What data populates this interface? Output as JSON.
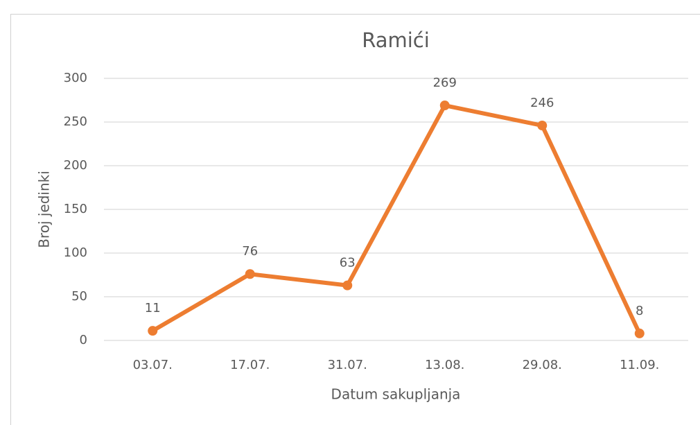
{
  "chart_data": {
    "type": "line",
    "title": "Ramići",
    "x_label": "Datum sakupljanja",
    "y_label": "Broj jedinki",
    "categories": [
      "03.07.",
      "17.07.",
      "31.07.",
      "13.08.",
      "29.08.",
      "11.09."
    ],
    "values": [
      11,
      76,
      63,
      269,
      246,
      8
    ],
    "color": "#ed7d31",
    "ylim": [
      0,
      300
    ],
    "yticks": [
      0,
      50,
      100,
      150,
      200,
      250,
      300
    ],
    "grid": true
  }
}
